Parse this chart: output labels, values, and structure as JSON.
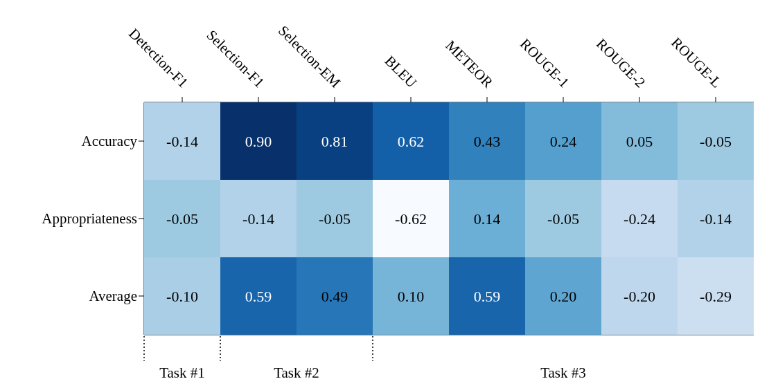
{
  "chart_data": {
    "type": "heatmap",
    "categories": [
      "Detection-F1",
      "Selection-F1",
      "Selection-EM",
      "BLEU",
      "METEOR",
      "ROUGE-1",
      "ROUGE-2",
      "ROUGE-L"
    ],
    "y_categories": [
      "Accuracy",
      "Appropriateness",
      "Average"
    ],
    "cells": [
      [
        -0.14,
        0.9,
        0.81,
        0.62,
        0.43,
        0.24,
        0.05,
        -0.05
      ],
      [
        -0.05,
        -0.14,
        -0.05,
        -0.62,
        0.14,
        -0.05,
        -0.24,
        -0.14
      ],
      [
        -0.1,
        0.59,
        0.49,
        0.1,
        0.59,
        0.2,
        -0.2,
        -0.29
      ]
    ],
    "cell_labels": [
      [
        "-0.14",
        "0.90",
        "0.81",
        "0.62",
        "0.43",
        "0.24",
        "0.05",
        "-0.05"
      ],
      [
        "-0.05",
        "-0.14",
        "-0.05",
        "-0.62",
        "0.14",
        "-0.05",
        "-0.24",
        "-0.14"
      ],
      [
        "-0.10",
        "0.59",
        "0.49",
        "0.10",
        "0.59",
        "0.20",
        "-0.20",
        "-0.29"
      ]
    ],
    "annotations": [
      "Task #1",
      "Task #2",
      "Task #3"
    ]
  }
}
